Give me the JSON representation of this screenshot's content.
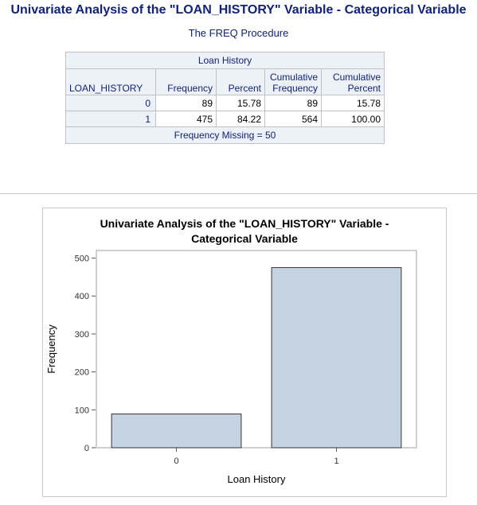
{
  "header": {
    "title": "Univariate Analysis of the \"LOAN_HISTORY\" Variable - Categorical Variable",
    "subtitle": "The FREQ Procedure"
  },
  "freq_table": {
    "title": "Loan History",
    "columns": [
      "LOAN_HISTORY",
      "Frequency",
      "Percent",
      "Cumulative Frequency",
      "Cumulative Percent"
    ],
    "rows": [
      {
        "level": "0",
        "frequency": "89",
        "percent": "15.78",
        "cum_frequency": "89",
        "cum_percent": "15.78"
      },
      {
        "level": "1",
        "frequency": "475",
        "percent": "84.22",
        "cum_frequency": "564",
        "cum_percent": "100.00"
      }
    ],
    "footer": "Frequency Missing = 50"
  },
  "chart_data": {
    "type": "bar",
    "title_line1": "Univariate Analysis of the \"LOAN_HISTORY\" Variable -",
    "title_line2": "Categorical Variable",
    "categories": [
      "0",
      "1"
    ],
    "values": [
      89,
      475
    ],
    "xlabel": "Loan History",
    "ylabel": "Frequency",
    "ylim": [
      0,
      520
    ],
    "yticks": [
      0,
      100,
      200,
      300,
      400,
      500
    ],
    "grid": false,
    "bar_fill": "#c6d3e3",
    "bar_stroke": "#333333"
  },
  "colors": {
    "title": "#112277",
    "header_bg": "#edf2f9"
  }
}
